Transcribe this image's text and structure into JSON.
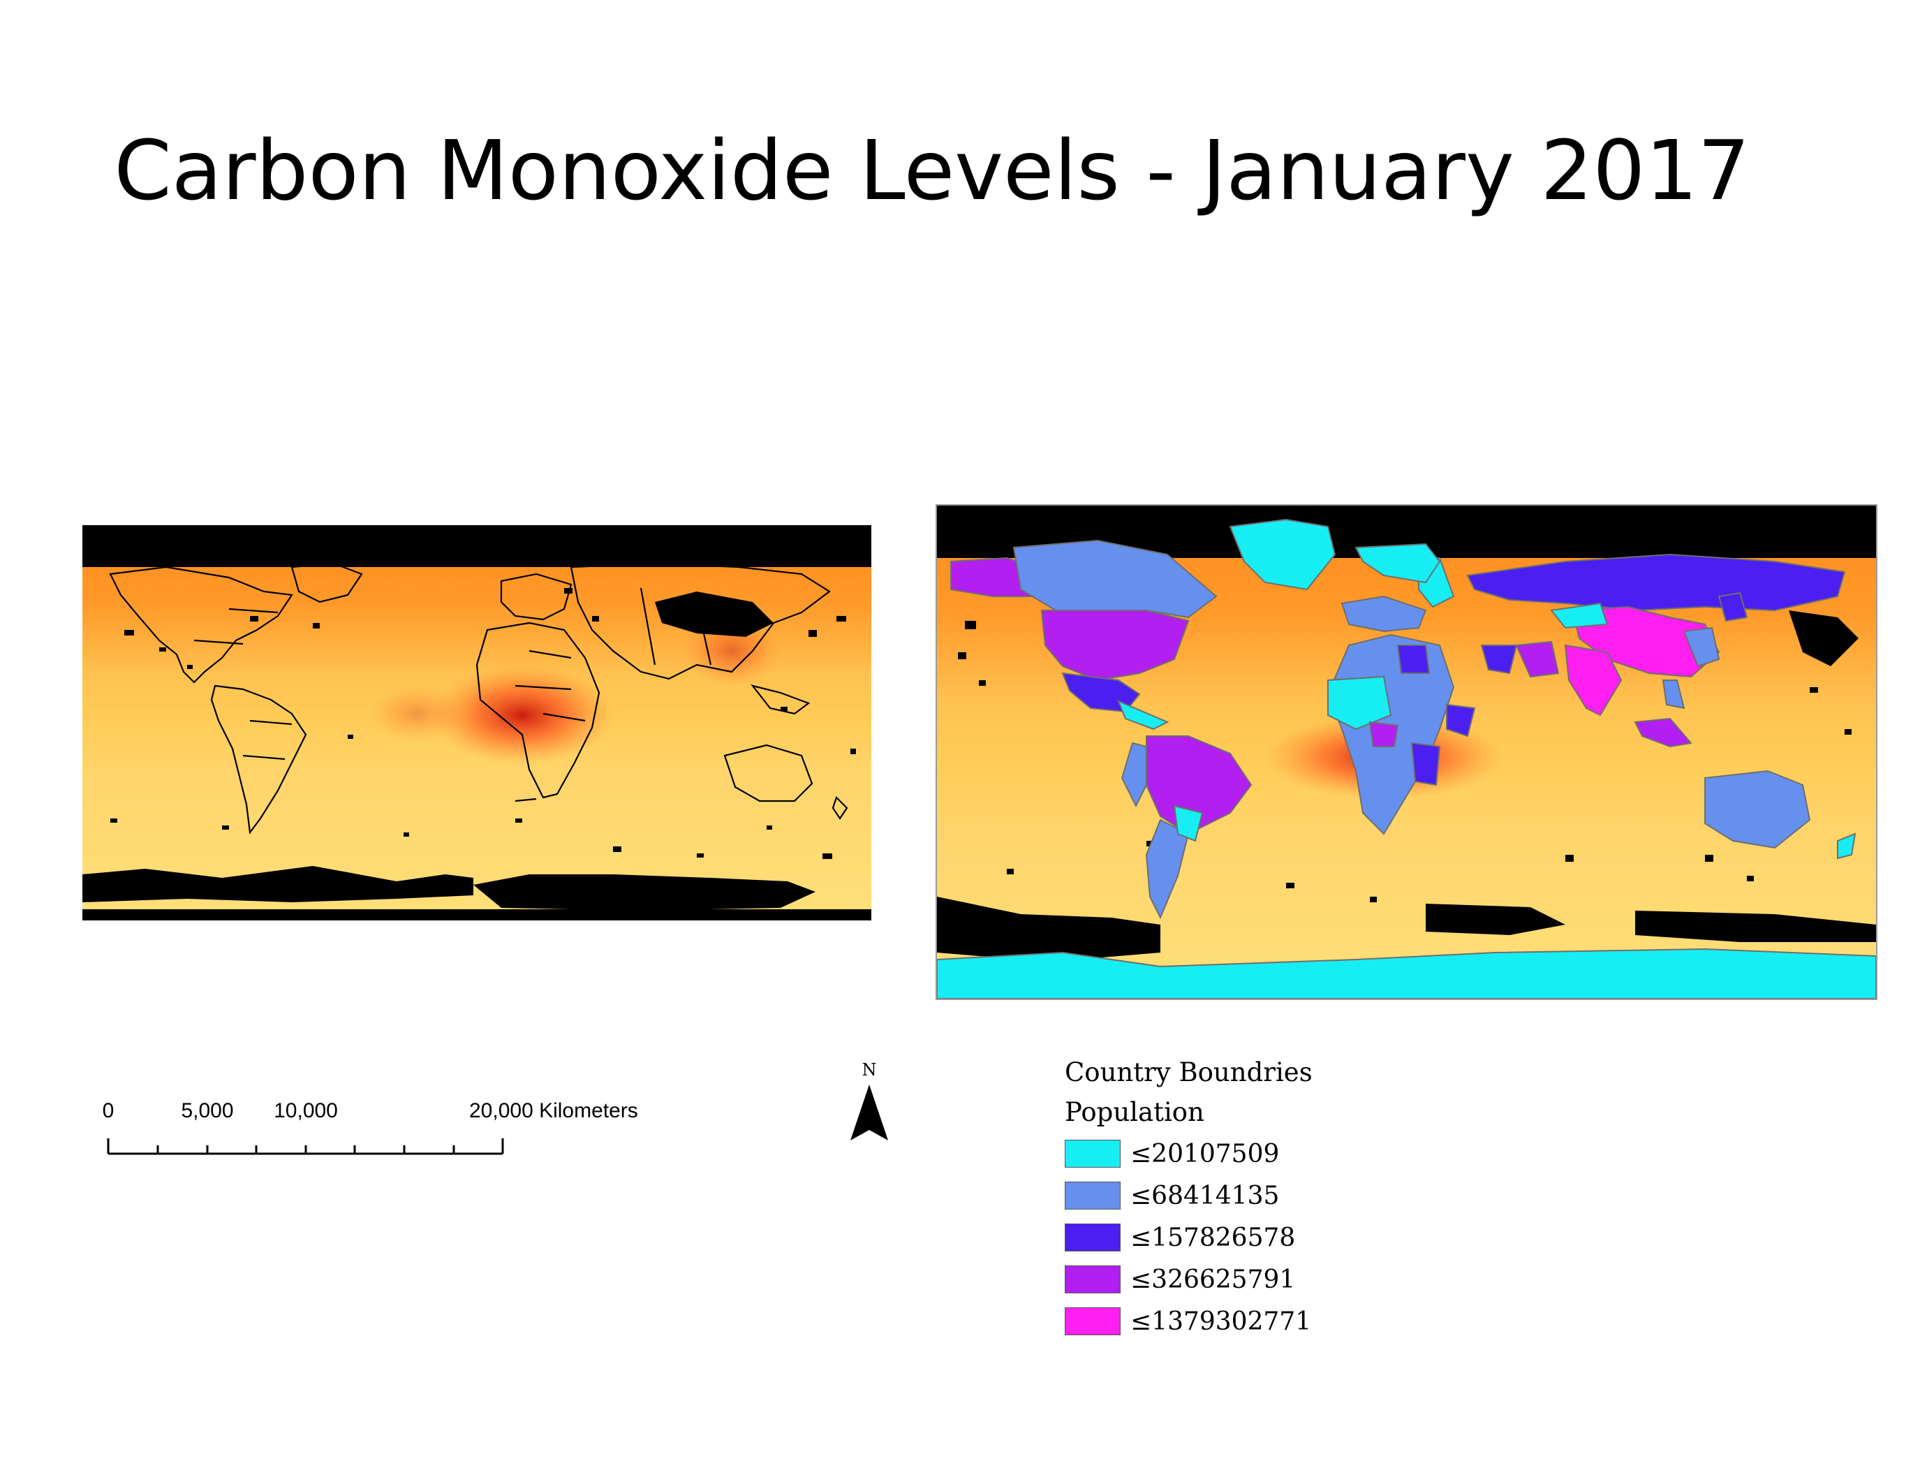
{
  "title": "Carbon Monoxide Levels - January 2017",
  "scale_bar": {
    "ticks": [
      "0",
      "5,000",
      "10,000",
      "20,000 Kilometers"
    ]
  },
  "north_arrow": {
    "label": "N"
  },
  "legend": {
    "layer": "Country Boundries",
    "field": "Population",
    "classes": [
      {
        "label": "≤20107509",
        "color": "#16eef4"
      },
      {
        "label": "≤68414135",
        "color": "#6690ee"
      },
      {
        "label": "≤157826578",
        "color": "#4b1ff0"
      },
      {
        "label": "≤326625791",
        "color": "#b21ff0"
      },
      {
        "label": "≤1379302771",
        "color": "#ff1ff0"
      }
    ]
  },
  "colors": {
    "co_low": "#ffe07a",
    "co_mid": "#ff9a2a",
    "co_high": "#d21a0a",
    "no_data": "#000000",
    "country_outline": "#000000",
    "right_outline": "#7a7a7a"
  }
}
